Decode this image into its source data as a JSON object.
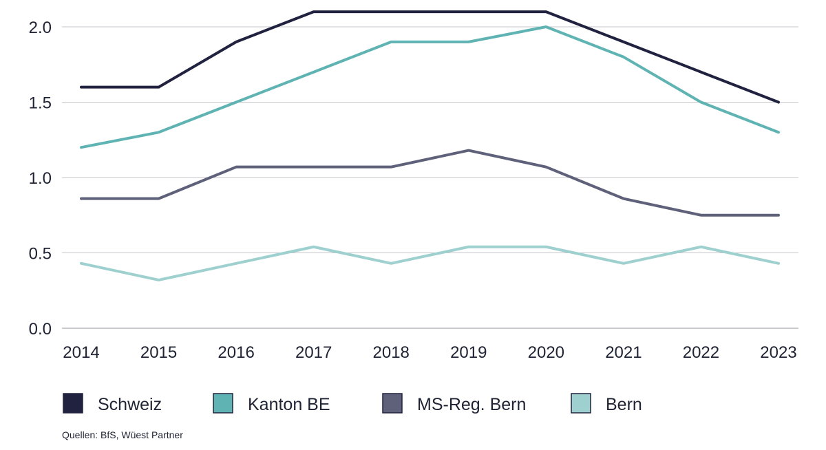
{
  "chart_data": {
    "type": "line",
    "x": [
      "2014",
      "2015",
      "2016",
      "2017",
      "2018",
      "2019",
      "2020",
      "2021",
      "2022",
      "2023"
    ],
    "series": [
      {
        "name": "Schweiz",
        "color": "#20223f",
        "values": [
          1.6,
          1.6,
          1.9,
          2.1,
          2.1,
          2.1,
          2.1,
          1.9,
          1.7,
          1.5
        ]
      },
      {
        "name": "Kanton BE",
        "color": "#5fb4b3",
        "values": [
          1.2,
          1.3,
          1.5,
          1.7,
          1.9,
          1.9,
          2.0,
          1.8,
          1.5,
          1.3
        ]
      },
      {
        "name": "MS-Reg. Bern",
        "color": "#5e6179",
        "values": [
          0.86,
          0.86,
          1.07,
          1.07,
          1.07,
          1.18,
          1.07,
          0.86,
          0.75,
          0.75
        ]
      },
      {
        "name": "Bern",
        "color": "#9ed0cf",
        "values": [
          0.43,
          0.32,
          0.43,
          0.54,
          0.43,
          0.54,
          0.54,
          0.43,
          0.54,
          0.43
        ]
      }
    ],
    "y_ticks": [
      "0.0",
      "0.5",
      "1.0",
      "1.5",
      "2.0"
    ],
    "ylim": [
      0,
      2.1
    ],
    "grid": true,
    "legend_position": "bottom"
  },
  "source": "Quellen: BfS, Wüest Partner"
}
